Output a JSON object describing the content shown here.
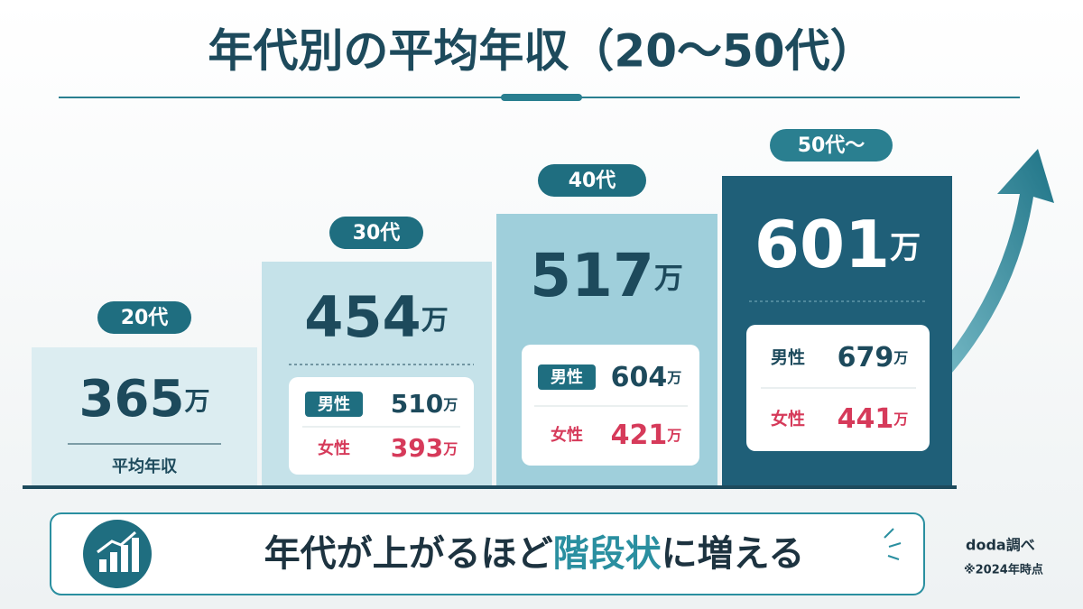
{
  "header": {
    "title": "年代別の平均年収（20〜50代）"
  },
  "steps": [
    {
      "label": "20代",
      "average": {
        "value": 365,
        "unit": "万"
      },
      "note": "平均年収"
    },
    {
      "label": "30代",
      "average": {
        "value": 454,
        "unit": "万"
      },
      "male": {
        "label": "男性",
        "value": 510,
        "unit": "万"
      },
      "female": {
        "label": "女性",
        "value": 393,
        "unit": "万"
      }
    },
    {
      "label": "40代",
      "average": {
        "value": 517,
        "unit": "万"
      },
      "male": {
        "label": "男性",
        "value": 604,
        "unit": "万"
      },
      "female": {
        "label": "女性",
        "value": 421,
        "unit": "万"
      }
    },
    {
      "label": "50代〜",
      "average": {
        "value": 601,
        "unit": "万"
      },
      "male": {
        "label": "男性",
        "value": 679,
        "unit": "万"
      },
      "female": {
        "label": "女性",
        "value": 441,
        "unit": "万"
      }
    }
  ],
  "banner": {
    "before": "年代が上がるほど",
    "highlight": "階段状",
    "after": "に増える"
  },
  "source": {
    "name": "doda調べ",
    "note": "※2024年時点"
  }
}
